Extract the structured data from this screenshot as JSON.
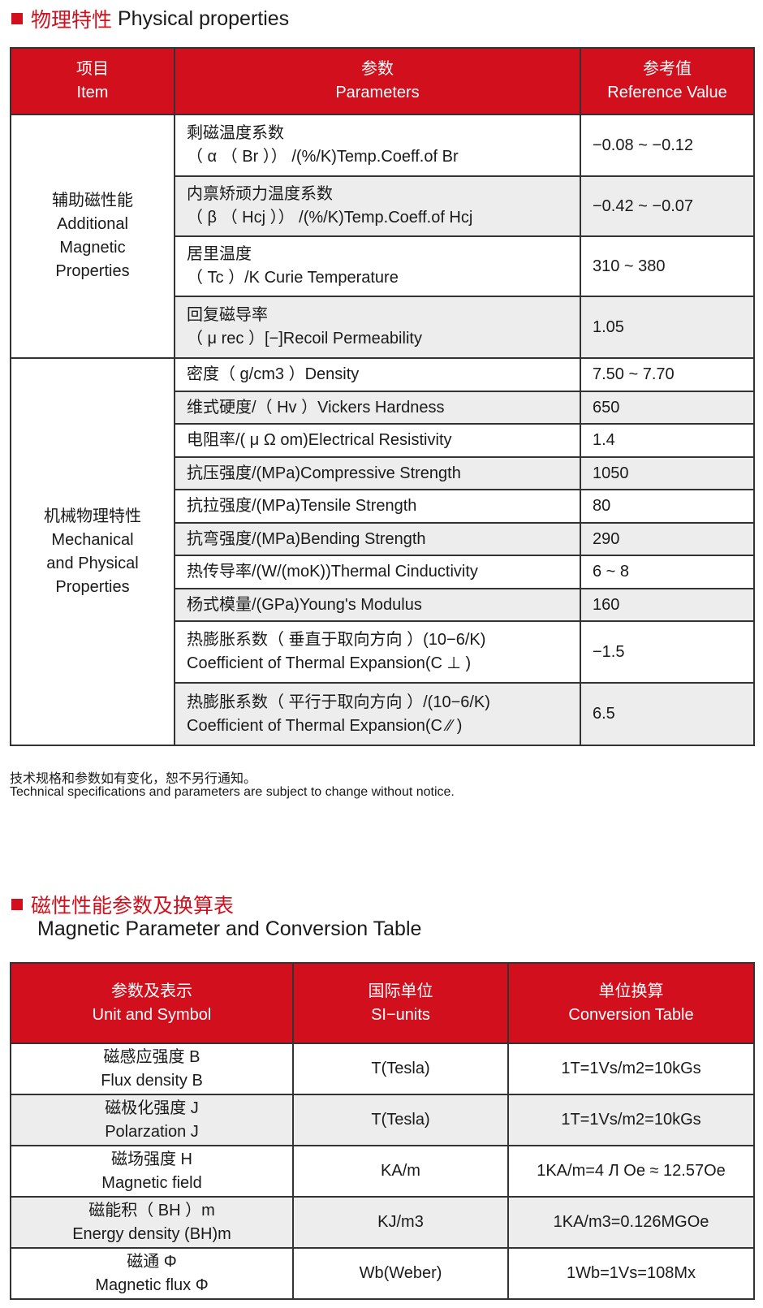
{
  "section1": {
    "title_cn": "物理特性",
    "title_en": "Physical properties"
  },
  "table1": {
    "headers": [
      {
        "cn": "项目",
        "en": "Item"
      },
      {
        "cn": "参数",
        "en": "Parameters"
      },
      {
        "cn": "参考值",
        "en": "Reference Value"
      }
    ],
    "groups": [
      {
        "cn": "辅助磁性能",
        "en1": "Additional",
        "en2": "Magnetic",
        "en3": "Properties"
      },
      {
        "cn": "机械物理特性",
        "en1": "Mechanical",
        "en2": "and Physical",
        "en3": "Properties"
      }
    ],
    "rows": [
      {
        "p1": "剩磁温度系数",
        "p2": "（ α （ Br ）） /(%/K)Temp.Coeff.of Br",
        "v": "−0.08 ~ −0.12"
      },
      {
        "p1": "内禀矫顽力温度系数",
        "p2": "（ β （ Hcj ）） /(%/K)Temp.Coeff.of Hcj",
        "v": "−0.42 ~ −0.07"
      },
      {
        "p1": "居里温度",
        "p2": "（ Tc ）/K Curie Temperature",
        "v": "310 ~ 380"
      },
      {
        "p1": "回复磁导率",
        "p2": "（ μ rec ）[−]Recoil Permeability",
        "v": "1.05"
      },
      {
        "p1": "密度（ g/cm3 ）Density",
        "v": "7.50 ~ 7.70"
      },
      {
        "p1": "维式硬度/（ Hv ）Vickers Hardness",
        "v": "650"
      },
      {
        "p1": "电阻率/( μ Ω om)Electrical Resistivity",
        "v": "1.4"
      },
      {
        "p1": "抗压强度/(MPa)Compressive Strength",
        "v": "1050"
      },
      {
        "p1": "抗拉强度/(MPa)Tensile Strength",
        "v": "80"
      },
      {
        "p1": "抗弯强度/(MPa)Bending Strength",
        "v": "290"
      },
      {
        "p1": "热传导率/(W/(moK))Thermal Cinductivity",
        "v": "6 ~ 8"
      },
      {
        "p1": "杨式模量/(GPa)Young's Modulus",
        "v": "160"
      },
      {
        "p1": "热膨胀系数（ 垂直于取向方向 ）(10−6/K)",
        "p2": "Coefficient of Thermal Expansion(C ⊥ )",
        "v": "−1.5"
      },
      {
        "p1": "热膨胀系数（ 平行于取向方向 ）/(10−6/K)",
        "p2": "Coefficient of Thermal Expansion(C ∕∕ )",
        "v": "6.5"
      }
    ]
  },
  "notes": {
    "cn": "技术规格和参数如有变化，恕不另行通知。",
    "en": "Technical specifications and parameters are subject to change without notice."
  },
  "section2": {
    "title_cn": "磁性性能参数及换算表",
    "title_en": "Magnetic Parameter and Conversion Table"
  },
  "table2": {
    "headers": [
      {
        "cn": "参数及表示",
        "en": "Unit and Symbol"
      },
      {
        "cn": "国际单位",
        "en": "SI−units"
      },
      {
        "cn": "单位换算",
        "en": "Conversion Table"
      }
    ],
    "rows": [
      {
        "cn": "磁感应强度 B",
        "en": "Flux density B",
        "si": "T(Tesla)",
        "conv": "1T=1Vs/m2=10kGs"
      },
      {
        "cn": "磁极化强度 J",
        "en": "Polarzation J",
        "si": "T(Tesla)",
        "conv": "1T=1Vs/m2=10kGs"
      },
      {
        "cn": "磁场强度 H",
        "en": "Magnetic field",
        "si": "KA/m",
        "conv": "1KA/m=4 Л Oe ≈ 12.57Oe"
      },
      {
        "cn": "磁能积（ BH ）m",
        "en": "Energy density (BH)m",
        "si": "KJ/m3",
        "conv": "1KA/m3=0.126MGOe"
      },
      {
        "cn": "磁通 Φ",
        "en": "Magnetic flux Φ",
        "si": "Wb(Weber)",
        "conv": "1Wb=1Vs=108Mx"
      }
    ]
  },
  "colors": {
    "accent": "#d20f1c",
    "row_alt": "#ededed"
  }
}
